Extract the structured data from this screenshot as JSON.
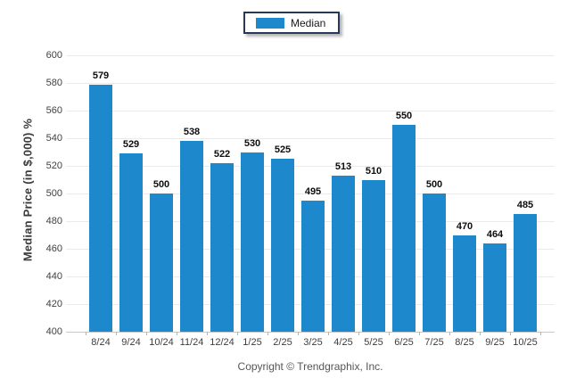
{
  "legend": {
    "items": [
      {
        "label": "Median",
        "color": "#1e88cc"
      }
    ]
  },
  "footer": {
    "copyright": "Copyright © Trendgraphix, Inc."
  },
  "chart_data": {
    "type": "bar",
    "title": "",
    "xlabel": "",
    "ylabel": "Median Price (in $,000) %",
    "categories": [
      "8/24",
      "9/24",
      "10/24",
      "11/24",
      "12/24",
      "1/25",
      "2/25",
      "3/25",
      "4/25",
      "5/25",
      "6/25",
      "7/25",
      "8/25",
      "9/25",
      "10/25"
    ],
    "series": [
      {
        "name": "Median",
        "color": "#1e88cc",
        "values": [
          579,
          529,
          500,
          538,
          522,
          530,
          525,
          495,
          513,
          510,
          550,
          500,
          470,
          464,
          485
        ]
      }
    ],
    "ylim": [
      400,
      600
    ],
    "ytick_step": 20,
    "grid": "horizontal",
    "legend_position": "top-center",
    "bar_value_labels": true
  }
}
